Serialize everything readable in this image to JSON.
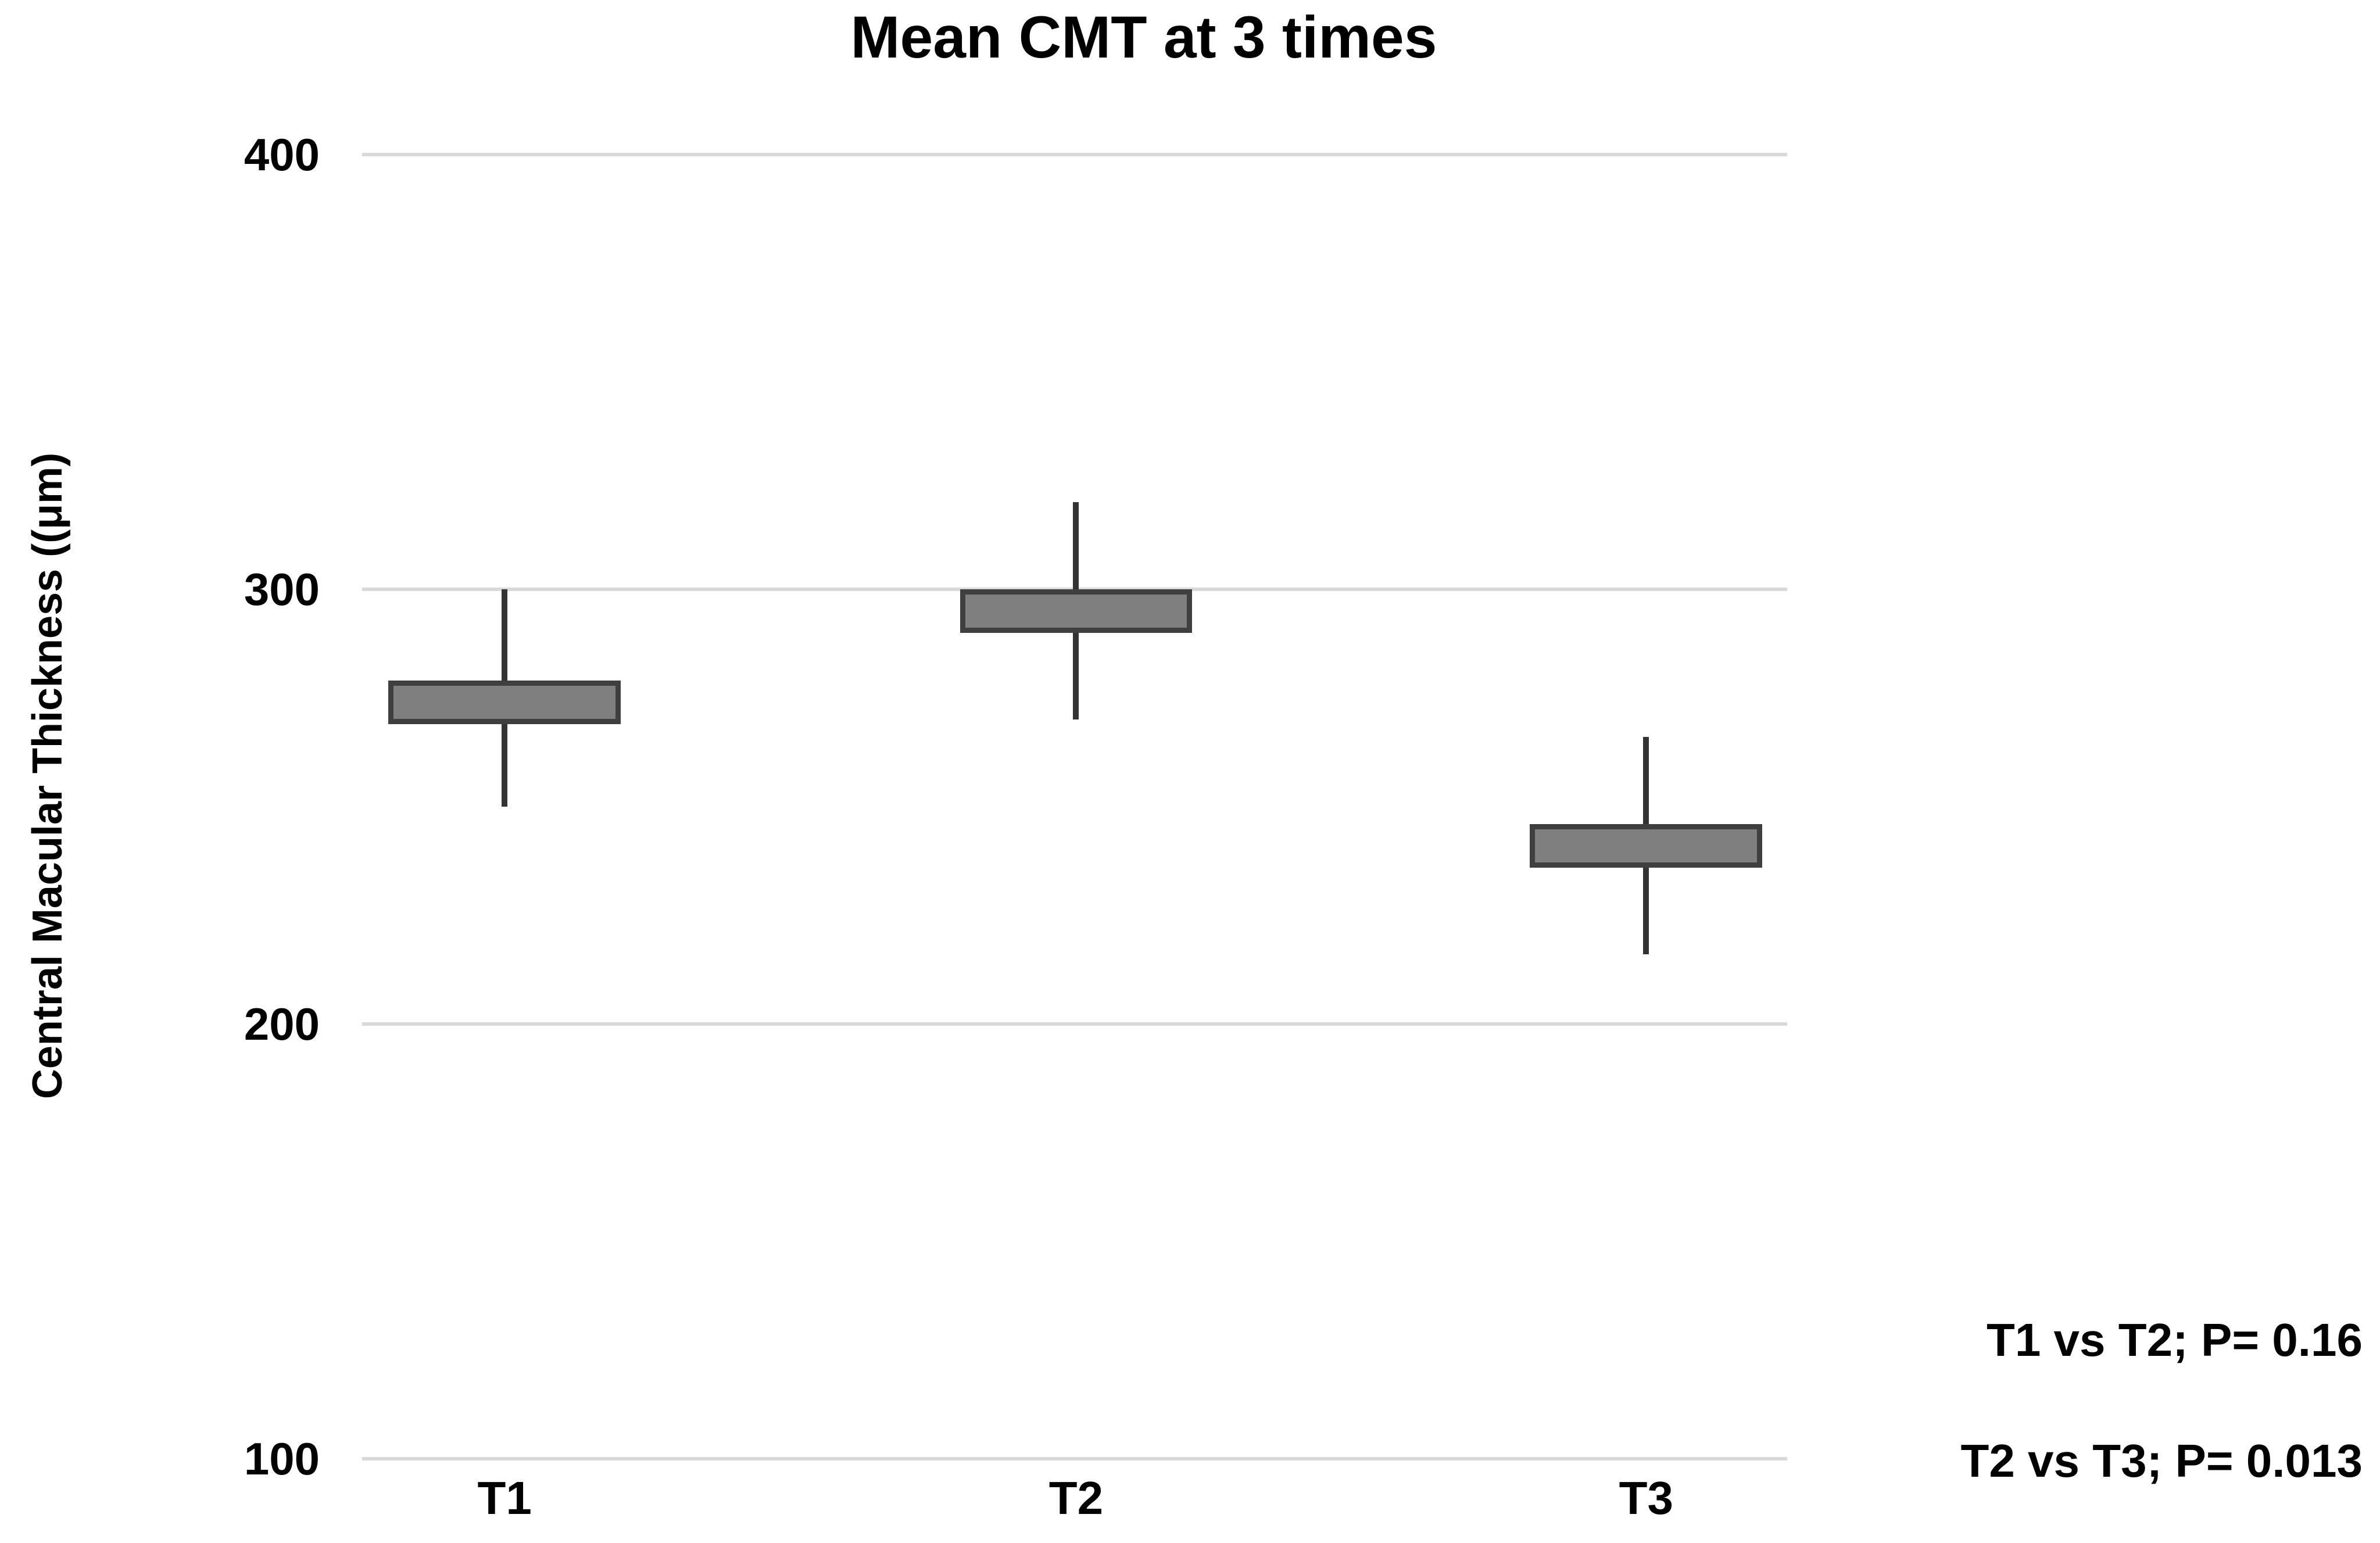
{
  "title": "Mean CMT at 3 times",
  "y_axis": {
    "title": "Central Macular Thickness ((μm)",
    "ticks": [
      "400",
      "300",
      "200",
      "100"
    ]
  },
  "x_axis": {
    "categories": [
      "T1",
      "T2",
      "T3"
    ]
  },
  "annotations": [
    "T1 vs T2; P= 0.16",
    "T2 vs T3; P= 0.013"
  ],
  "colors": {
    "box_fill": "#7f7f7f",
    "box_border": "#3f3f3f",
    "whisker": "#333333",
    "gridline": "#d9d9d9",
    "text": "#000000",
    "background": "#ffffff"
  },
  "chart_data": {
    "type": "box",
    "title": "Mean CMT at 3 times",
    "xlabel": "",
    "ylabel": "Central Macular Thickness ((μm)",
    "categories": [
      "T1",
      "T2",
      "T3"
    ],
    "series": [
      {
        "name": "Mean CMT",
        "points": [
          {
            "category": "T1",
            "whisker_low": 250,
            "box_low": 269,
            "box_high": 279,
            "whisker_high": 300
          },
          {
            "category": "T2",
            "whisker_low": 270,
            "box_low": 290,
            "box_high": 300,
            "whisker_high": 320
          },
          {
            "category": "T3",
            "whisker_low": 216,
            "box_low": 236,
            "box_high": 246,
            "whisker_high": 266
          }
        ]
      }
    ],
    "ylim": [
      100,
      400
    ],
    "yticks": [
      400,
      300,
      200,
      100
    ],
    "grid": "horizontal",
    "legend_position": "none",
    "annotations": [
      "T1 vs T2; P= 0.16",
      "T2 vs T3; P= 0.013"
    ],
    "layout": {
      "category_center_pct": [
        10,
        50.1,
        90.1
      ],
      "box_width_pct": 16.3
    }
  }
}
